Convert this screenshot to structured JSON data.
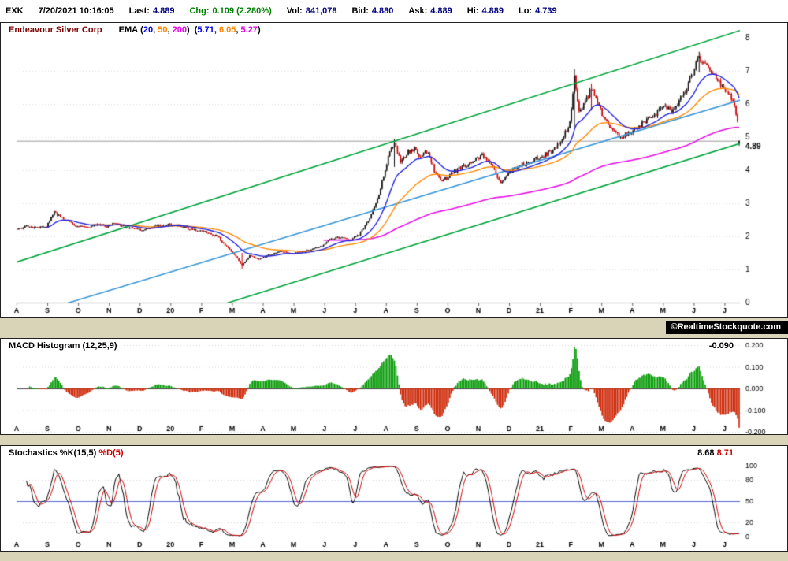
{
  "header": {
    "symbol": "EXK",
    "datetime": "7/20/2021 10:16:05",
    "fields": [
      {
        "label": "Last:",
        "value": "4.889"
      },
      {
        "label": "Chg:",
        "value": "0.109 (2.280%)"
      },
      {
        "label": "Vol:",
        "value": "841,078"
      },
      {
        "label": "Bid:",
        "value": "4.880"
      },
      {
        "label": "Ask:",
        "value": "4.889"
      },
      {
        "label": "Hi:",
        "value": "4.889"
      },
      {
        "label": "Lo:",
        "value": "4.739"
      }
    ]
  },
  "watermark": "©RealtimeStockquote.com",
  "chart_data": [
    {
      "type": "candlestick",
      "title": "Endeavour Silver Corp",
      "legend": {
        "label": "EMA",
        "periods": [
          "20",
          "50",
          "200"
        ],
        "values": [
          "5.71",
          "6.05",
          "5.27"
        ],
        "fmt": {
          "open": "(",
          "sep": ", ",
          "close": ")"
        }
      },
      "colors": {
        "up": "#111111",
        "down": "#cc0000",
        "ema20": "#2222dd",
        "ema50": "#ff8800",
        "ema200": "#e610e6",
        "channel": "#00a33c",
        "trend": "#3c97d8"
      },
      "x_months": [
        "A",
        "S",
        "O",
        "N",
        "D",
        "20",
        "F",
        "M",
        "A",
        "M",
        "J",
        "J",
        "A",
        "S",
        "O",
        "N",
        "D",
        "21",
        "F",
        "M",
        "A",
        "M",
        "J",
        "J"
      ],
      "bars_per_month": 20,
      "total_bars": 470,
      "ylim": [
        0,
        8
      ],
      "y_ticks": [
        8,
        7,
        6,
        5,
        4,
        3,
        2,
        1,
        0
      ],
      "last_price": 4.889,
      "last_price_label": "4.89",
      "last_bar": {
        "open": 4.8,
        "high": 4.889,
        "low": 4.739,
        "close": 4.889
      },
      "price_anchors": [
        [
          0,
          2.2
        ],
        [
          6,
          2.32
        ],
        [
          12,
          2.25
        ],
        [
          19,
          2.3
        ],
        [
          24,
          2.72
        ],
        [
          27,
          2.62
        ],
        [
          33,
          2.45
        ],
        [
          39,
          2.3
        ],
        [
          45,
          2.25
        ],
        [
          52,
          2.38
        ],
        [
          58,
          2.3
        ],
        [
          63,
          2.4
        ],
        [
          70,
          2.28
        ],
        [
          76,
          2.22
        ],
        [
          82,
          2.18
        ],
        [
          90,
          2.32
        ],
        [
          97,
          2.36
        ],
        [
          104,
          2.34
        ],
        [
          112,
          2.22
        ],
        [
          118,
          2.18
        ],
        [
          124,
          2.1
        ],
        [
          130,
          2
        ],
        [
          136,
          1.68
        ],
        [
          141,
          1.45
        ],
        [
          146,
          1.12
        ],
        [
          151,
          1.42
        ],
        [
          157,
          1.32
        ],
        [
          163,
          1.42
        ],
        [
          171,
          1.55
        ],
        [
          178,
          1.48
        ],
        [
          184,
          1.52
        ],
        [
          192,
          1.63
        ],
        [
          198,
          1.72
        ],
        [
          204,
          1.92
        ],
        [
          210,
          1.98
        ],
        [
          216,
          1.88
        ],
        [
          222,
          2.05
        ],
        [
          228,
          2.45
        ],
        [
          234,
          3.1
        ],
        [
          238,
          3.85
        ],
        [
          242,
          4.55
        ],
        [
          245,
          4.82
        ],
        [
          249,
          4.25
        ],
        [
          254,
          4.55
        ],
        [
          258,
          4.65
        ],
        [
          262,
          4.4
        ],
        [
          267,
          4.6
        ],
        [
          271,
          3.95
        ],
        [
          276,
          3.65
        ],
        [
          282,
          3.9
        ],
        [
          289,
          4.1
        ],
        [
          296,
          4.25
        ],
        [
          302,
          4.45
        ],
        [
          308,
          4.15
        ],
        [
          314,
          3.62
        ],
        [
          320,
          3.95
        ],
        [
          328,
          4.18
        ],
        [
          336,
          4.32
        ],
        [
          342,
          4.45
        ],
        [
          348,
          4.6
        ],
        [
          354,
          4.95
        ],
        [
          359,
          5.4
        ],
        [
          362,
          6.9
        ],
        [
          365,
          5.75
        ],
        [
          369,
          6.05
        ],
        [
          373,
          6.5
        ],
        [
          377,
          6.1
        ],
        [
          381,
          5.6
        ],
        [
          386,
          5.2
        ],
        [
          392,
          4.98
        ],
        [
          398,
          5.12
        ],
        [
          403,
          5.3
        ],
        [
          409,
          5.5
        ],
        [
          415,
          5.72
        ],
        [
          421,
          5.95
        ],
        [
          426,
          5.8
        ],
        [
          431,
          6.15
        ],
        [
          436,
          6.6
        ],
        [
          440,
          7.05
        ],
        [
          443,
          7.42
        ],
        [
          447,
          7.2
        ],
        [
          452,
          6.9
        ],
        [
          457,
          6.6
        ],
        [
          461,
          6.35
        ],
        [
          464,
          6.15
        ],
        [
          466,
          6
        ],
        [
          468,
          5.45
        ],
        [
          469,
          4.95
        ]
      ],
      "spikes": [
        [
          146,
          1.02,
          1.5
        ],
        [
          245,
          4.1,
          4.95
        ],
        [
          362,
          5.3,
          7.05
        ],
        [
          373,
          5.8,
          6.62
        ],
        [
          443,
          6.95,
          7.58
        ]
      ],
      "trendlines": [
        {
          "name": "channel-upper",
          "color": "#00a33c",
          "p1": [
            90,
            2.57
          ],
          "p2": [
            466,
            8.17
          ]
        },
        {
          "name": "channel-lower",
          "color": "#00a33c",
          "p1": [
            129,
            -0.12
          ],
          "p2": [
            469,
            4.8
          ]
        },
        {
          "name": "mid-trend",
          "color": "#3c97d8",
          "p1": [
            90,
            0.79
          ],
          "p2": [
            469,
            6.11
          ]
        }
      ]
    },
    {
      "type": "histogram",
      "title": "MACD Histogram (12,25,9)",
      "current_value": "-0.090",
      "params": [
        12,
        25,
        9
      ],
      "ylim": [
        -0.2,
        0.2
      ],
      "y_ticks": [
        "0.200",
        "0.100",
        "0.000",
        "-0.100",
        "-0.200"
      ],
      "max_abs": 0.19,
      "colors": {
        "pos": "#009900",
        "neg": "#cc2200",
        "zero": "#444444"
      }
    },
    {
      "type": "line",
      "title_k": "Stochastics %K(15,5)",
      "title_d": "%D(5)",
      "value_k": "8.68",
      "value_d": "8.71",
      "params_k": [
        15,
        5
      ],
      "params_d": 5,
      "ylim": [
        0,
        100
      ],
      "y_ticks": [
        100,
        80,
        50,
        20,
        0
      ],
      "midline": 50,
      "colors": {
        "k": "#000000",
        "d": "#cc0000",
        "mid": "#5566cc"
      }
    }
  ]
}
